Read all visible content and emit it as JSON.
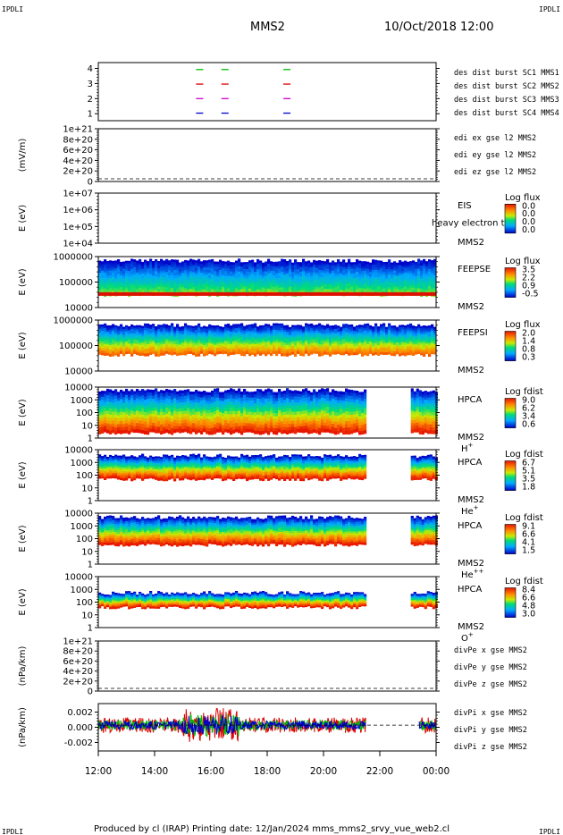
{
  "header": {
    "corner_left_top": "IPDLI",
    "corner_right_top": "IPDLI",
    "title": "MMS2",
    "date": "10/Oct/2018 12:00",
    "corner_left_bottom": "IPDLI",
    "corner_right_bottom": "IPDLI"
  },
  "footer": {
    "text": "Produced by cl (IRAP)   Printing date: 12/Jan/2024   mms_mms2_srvy_vue_web2.cl"
  },
  "colors": {
    "blue": "#0000cc",
    "magenta": "#cc00cc",
    "red": "#dd0000",
    "green": "#00bb00"
  },
  "chart_data": [
    {
      "type": "scatter",
      "panel": "burst",
      "yticks": [
        "4",
        "3",
        "2",
        "1"
      ],
      "legend": [
        {
          "label": "des dist burst SC1 MMS1",
          "color": "#0000cc"
        },
        {
          "label": "des dist burst SC2 MMS2",
          "color": "#cc00cc"
        },
        {
          "label": "des dist burst SC3 MMS3",
          "color": "#dd0000"
        },
        {
          "label": "des dist burst SC4 MMS4",
          "color": "#00bb00"
        }
      ],
      "bursts_hours": [
        15.6,
        16.5,
        18.7
      ]
    },
    {
      "type": "line",
      "panel": "edi",
      "ylabel": "(mV/m)",
      "yticks": [
        "1e+21",
        "8e+20",
        "6e+20",
        "4e+20",
        "2e+20",
        "0"
      ],
      "legend": [
        {
          "label": "edi ex gse l2 MMS2",
          "color": "#dd0000"
        },
        {
          "label": "edi ey gse l2 MMS2",
          "color": "#00bb00"
        },
        {
          "label": "edi ez gse l2 MMS2",
          "color": "#0000cc"
        }
      ]
    },
    {
      "type": "heatmap",
      "panel": "eis",
      "ylabel": "E (eV)",
      "yticks": [
        "1e+07",
        "1e+06",
        "1e+05",
        "1e+04"
      ],
      "instrument": "EIS",
      "species": "heavy electron tof",
      "sc": "MMS2",
      "cbar_title": "Log flux",
      "cbar_ticks": [
        "0.0",
        "0.0",
        "0.0",
        "0.0"
      ]
    },
    {
      "type": "heatmap",
      "panel": "feepse",
      "ylabel": "E (eV)",
      "yticks": [
        "1000000",
        "100000",
        "10000"
      ],
      "instrument": "FEEPSE",
      "sc": "MMS2",
      "cbar_title": "Log flux",
      "cbar_ticks": [
        "3.5",
        "2.2",
        "0.9",
        "-0.5"
      ]
    },
    {
      "type": "heatmap",
      "panel": "feepsi",
      "ylabel": "E (eV)",
      "yticks": [
        "1000000",
        "100000",
        "10000"
      ],
      "instrument": "FEEPSI",
      "sc": "MMS2",
      "cbar_title": "Log flux",
      "cbar_ticks": [
        "2.0",
        "1.4",
        "0.8",
        "0.3"
      ]
    },
    {
      "type": "heatmap",
      "panel": "hpca_h",
      "ylabel": "E (eV)",
      "yticks": [
        "10000",
        "1000",
        "100",
        "10",
        "1"
      ],
      "instrument": "HPCA",
      "sc": "MMS2",
      "ion": "H",
      "ion_sup": "+",
      "cbar_title": "Log fdist",
      "cbar_ticks": [
        "9.0",
        "6.2",
        "3.4",
        "0.6"
      ]
    },
    {
      "type": "heatmap",
      "panel": "hpca_he1",
      "ylabel": "E (eV)",
      "yticks": [
        "10000",
        "1000",
        "100",
        "10",
        "1"
      ],
      "instrument": "HPCA",
      "sc": "MMS2",
      "ion": "He",
      "ion_sup": "+",
      "cbar_title": "Log fdist",
      "cbar_ticks": [
        "6.7",
        "5.1",
        "3.5",
        "1.8"
      ]
    },
    {
      "type": "heatmap",
      "panel": "hpca_he2",
      "ylabel": "E (eV)",
      "yticks": [
        "10000",
        "1000",
        "100",
        "10",
        "1"
      ],
      "instrument": "HPCA",
      "sc": "MMS2",
      "ion": "He",
      "ion_sup": "++",
      "cbar_title": "Log fdist",
      "cbar_ticks": [
        "9.1",
        "6.6",
        "4.1",
        "1.5"
      ]
    },
    {
      "type": "heatmap",
      "panel": "hpca_o",
      "ylabel": "E (eV)",
      "yticks": [
        "10000",
        "1000",
        "100",
        "10",
        "1"
      ],
      "instrument": "HPCA",
      "sc": "MMS2",
      "ion": "O",
      "ion_sup": "+",
      "cbar_title": "Log fdist",
      "cbar_ticks": [
        "8.4",
        "6.6",
        "4.8",
        "3.0"
      ]
    },
    {
      "type": "line",
      "panel": "divpe",
      "ylabel": "(nPa/km)",
      "yticks": [
        "1e+21",
        "8e+20",
        "6e+20",
        "4e+20",
        "2e+20",
        "0"
      ],
      "legend": [
        {
          "label": "divPe x gse MMS2",
          "color": "#dd0000"
        },
        {
          "label": "divPe y gse MMS2",
          "color": "#00bb00"
        },
        {
          "label": "divPe z gse MMS2",
          "color": "#0000cc"
        }
      ]
    },
    {
      "type": "line",
      "panel": "divpi",
      "ylabel": "(nPa/km)",
      "yticks": [
        "0.002",
        "0.000",
        "-0.002"
      ],
      "ylim": [
        -0.003,
        0.0025
      ],
      "legend": [
        {
          "label": "divPi x gse MMS2",
          "color": "#dd0000"
        },
        {
          "label": "divPi y gse MMS2",
          "color": "#00bb00"
        },
        {
          "label": "divPi z gse MMS2",
          "color": "#0000cc"
        }
      ]
    }
  ],
  "xaxis": {
    "ticks": [
      "12:00",
      "14:00",
      "16:00",
      "18:00",
      "20:00",
      "22:00",
      "00:00"
    ],
    "range_hours": [
      12,
      24
    ],
    "data_gap_hours": [
      21.5,
      23.1
    ]
  }
}
